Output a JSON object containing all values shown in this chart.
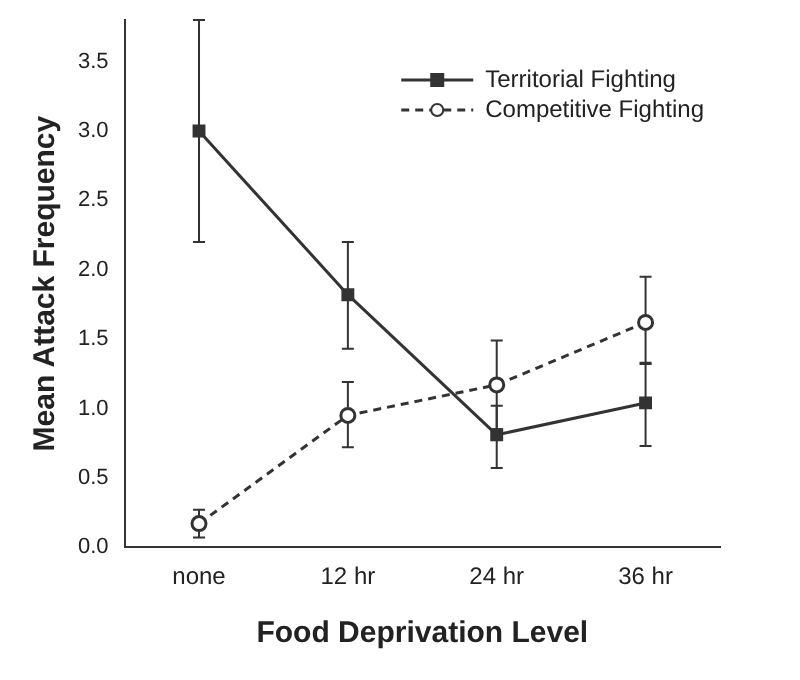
{
  "chart_data": {
    "type": "line",
    "xlabel": "Food Deprivation Level",
    "ylabel": "Mean Attack Frequency",
    "categories": [
      "none",
      "12 hr",
      "24 hr",
      "36 hr"
    ],
    "series": [
      {
        "name": "Territorial Fighting",
        "color": "#333333",
        "marker": "square",
        "line_style": "solid",
        "values": [
          3.0,
          1.82,
          0.81,
          1.04
        ],
        "errors": [
          [
            2.2,
            3.8
          ],
          [
            1.43,
            2.2
          ],
          [
            0.57,
            1.02
          ],
          [
            0.73,
            1.33
          ]
        ]
      },
      {
        "name": "Competitive Fighting",
        "color": "#333333",
        "marker": "circle",
        "line_style": "dashed",
        "values": [
          0.17,
          0.95,
          1.17,
          1.62
        ],
        "errors": [
          [
            0.07,
            0.27
          ],
          [
            0.72,
            1.19
          ],
          [
            0.85,
            1.49
          ],
          [
            1.32,
            1.95
          ]
        ]
      }
    ],
    "ylim": [
      0,
      3.8
    ],
    "yticks": [
      {
        "value": 0,
        "label": "0.0"
      },
      {
        "value": 0.5,
        "label": "0.5"
      },
      {
        "value": 1,
        "label": "1.0"
      },
      {
        "value": 1.5,
        "label": "1.5"
      },
      {
        "value": 2,
        "label": "2.0"
      },
      {
        "value": 2.5,
        "label": "2.5"
      },
      {
        "value": 3,
        "label": "3.0"
      },
      {
        "value": 3.5,
        "label": "3.5"
      }
    ],
    "grid": false,
    "legend": "top right"
  }
}
